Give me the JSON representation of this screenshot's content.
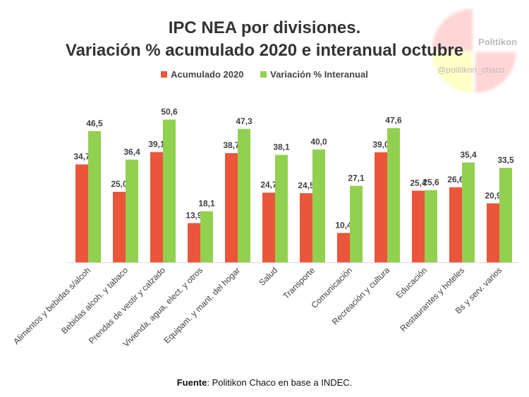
{
  "colors": {
    "accumulated": "#eb553a",
    "interannual": "#92d050"
  },
  "watermark": {
    "name": "Politikon",
    "handle": "@politikon_chaco"
  },
  "chart_data": {
    "type": "bar",
    "title": "IPC NEA por divisiones.",
    "subtitle": "Variación % acumulado 2020 e interanual octubre",
    "categories": [
      "Alimentos y bebidas s/alcoh",
      "Bebidas alcoh. y tabaco",
      "Prendas de vestir y calzado",
      "Vivienda, agua, elect. y otros",
      "Equipam. y mant. del hogar",
      "Salud",
      "Transporte",
      "Comunicación",
      "Recreación y cultura",
      "Educación",
      "Restaurantes y hoteles",
      "Bs y serv. varios"
    ],
    "series": [
      {
        "name": "Acumulado 2020",
        "values": [
          34.7,
          25.0,
          39.1,
          13.9,
          38.7,
          24.7,
          24.5,
          10.4,
          39.0,
          25.4,
          26.6,
          20.9
        ]
      },
      {
        "name": "Variación % Interanual",
        "values": [
          46.5,
          36.4,
          50.6,
          18.1,
          47.3,
          38.1,
          40.0,
          27.1,
          47.6,
          25.6,
          35.4,
          33.5
        ]
      }
    ],
    "ylim": [
      0,
      52
    ],
    "grid": false,
    "legend": "top"
  },
  "source": {
    "label": "Fuente",
    "text": ": Politikon Chaco en base a INDEC."
  }
}
